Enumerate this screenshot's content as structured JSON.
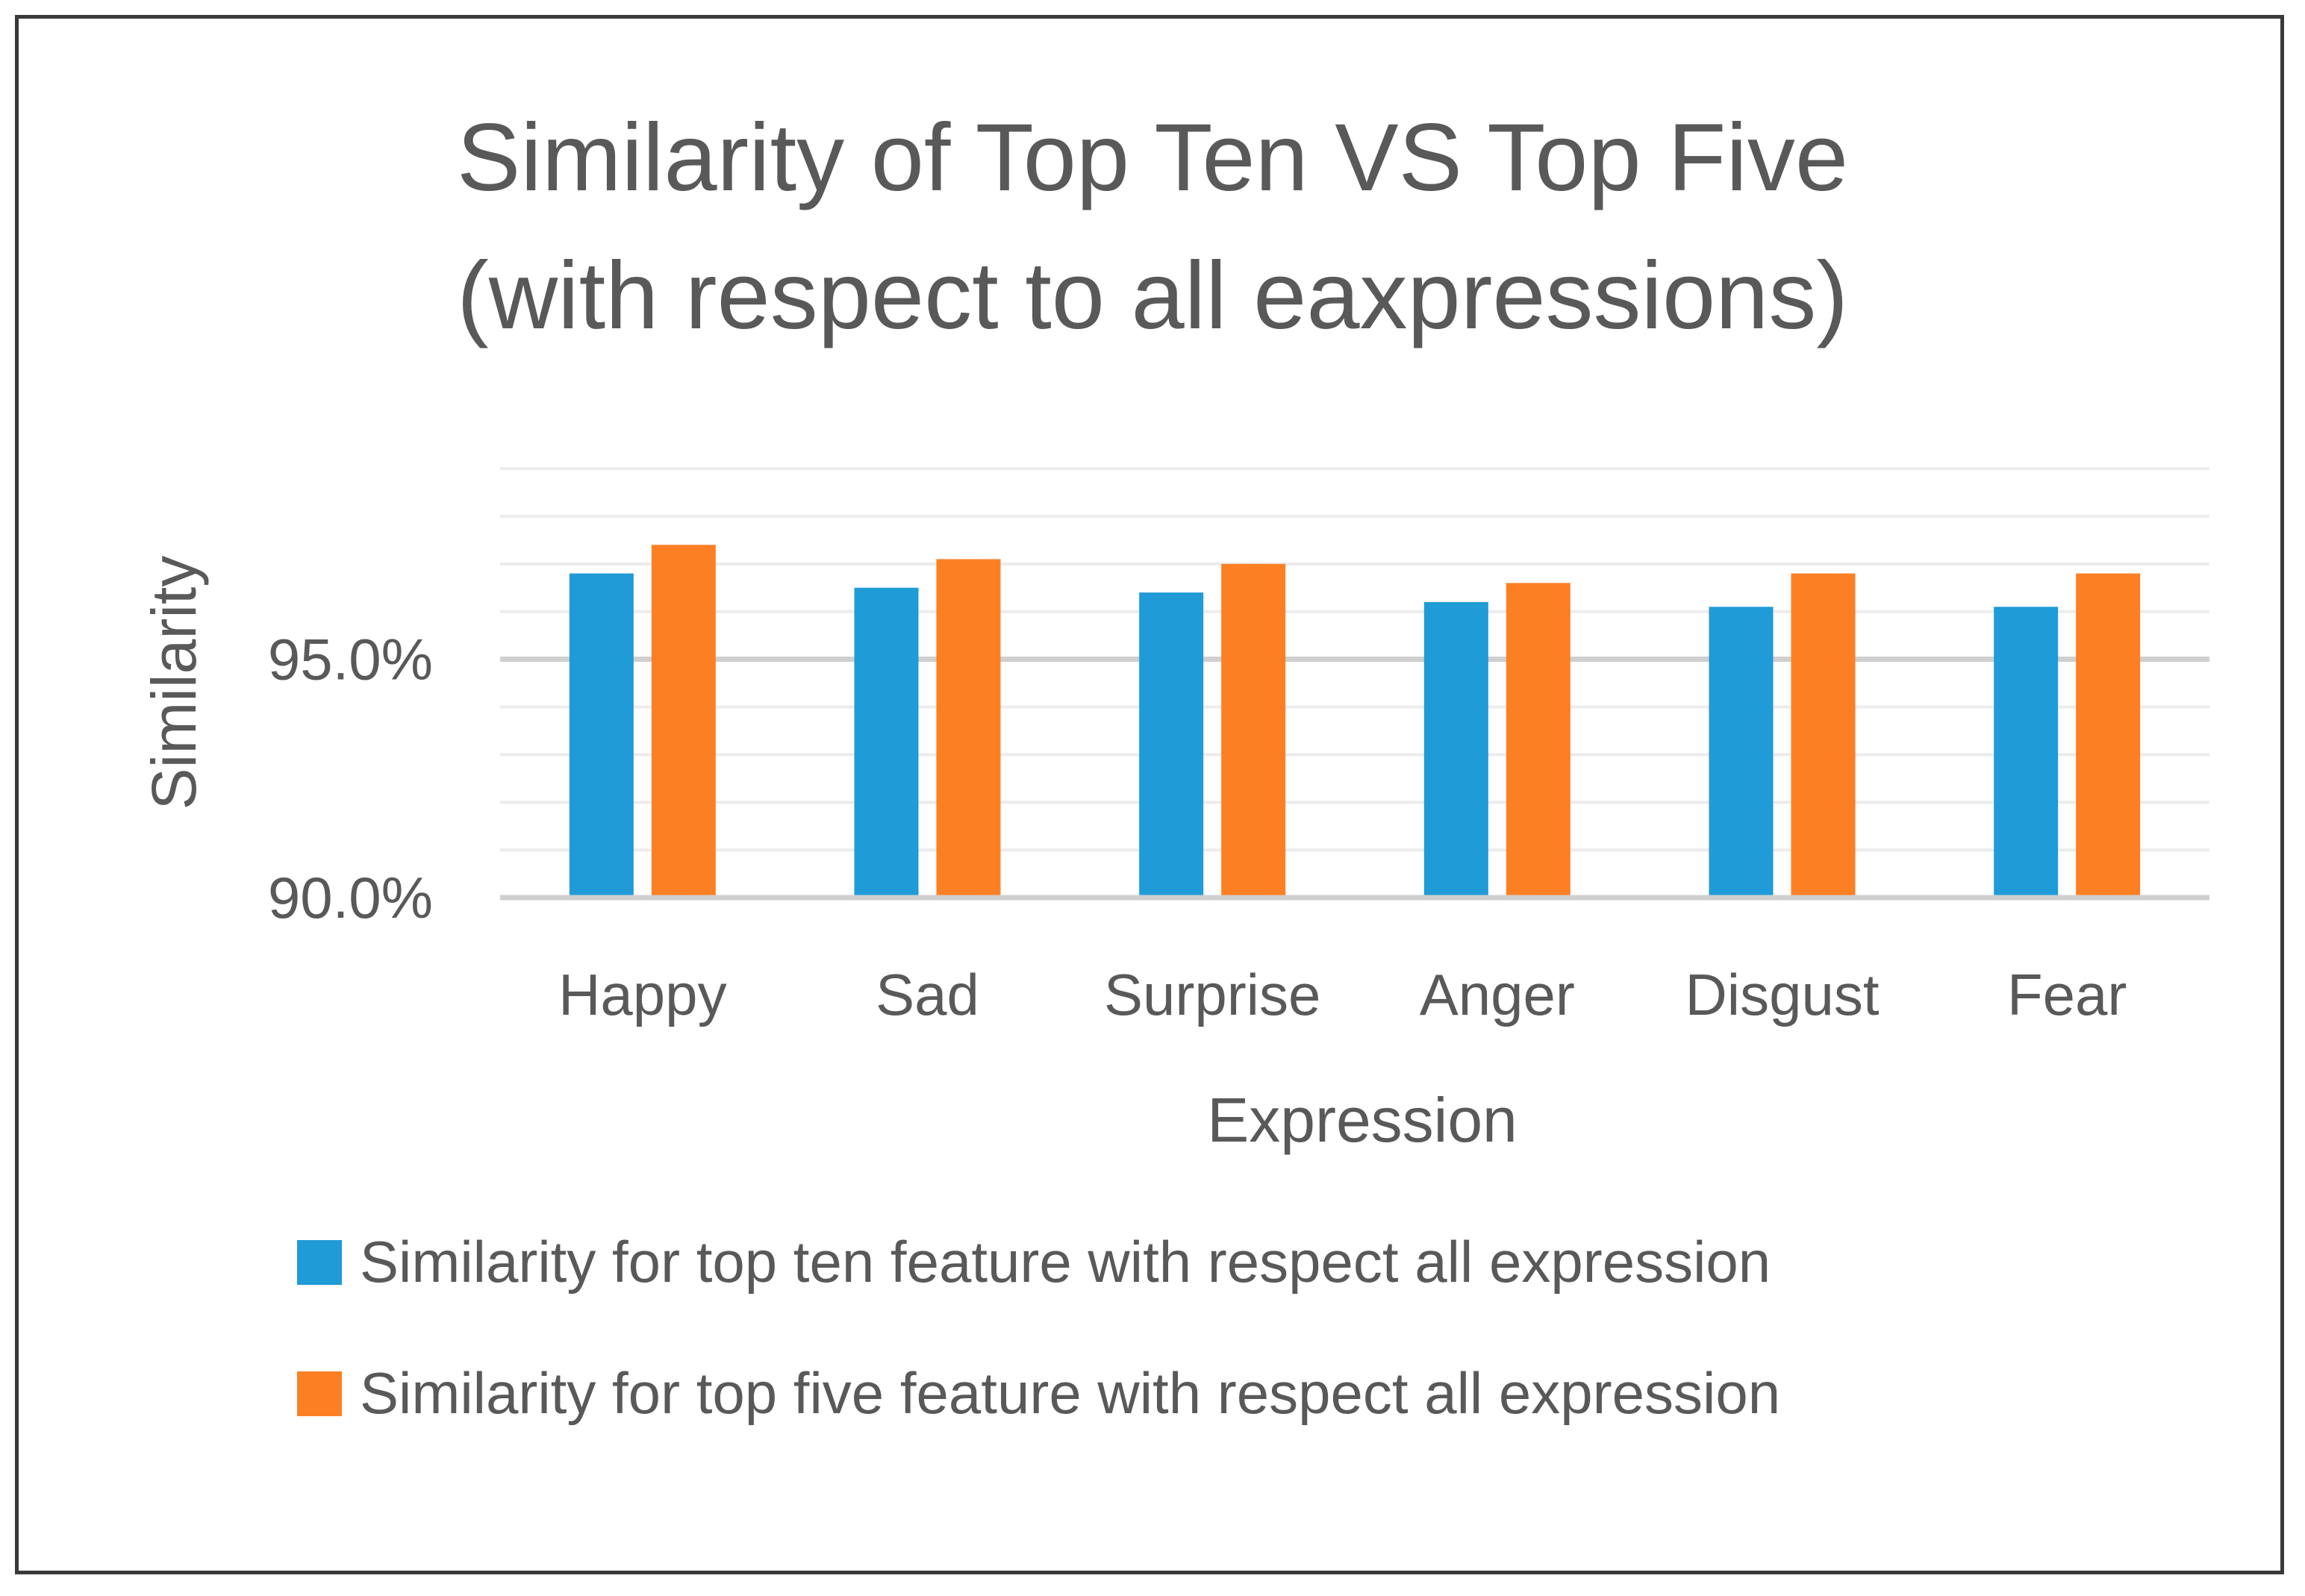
{
  "chart_data": {
    "type": "bar",
    "title": "Similarity of Top Ten VS Top Five",
    "subtitle": "(with respect to all eaxpressions)",
    "xlabel": "Expression",
    "ylabel": "Similarity",
    "categories": [
      "Happy",
      "Sad",
      "Surprise",
      "Anger",
      "Disgust",
      "Fear"
    ],
    "series": [
      {
        "name": "Similarity for top ten feature with respect all expression",
        "color": "#1f9bd7",
        "values": [
          96.8,
          96.5,
          96.4,
          96.2,
          96.1,
          96.1
        ]
      },
      {
        "name": "Similarity for top five feature with respect all expression",
        "color": "#fd7f23",
        "values": [
          97.4,
          97.1,
          97.0,
          96.6,
          96.8,
          96.8
        ]
      }
    ],
    "ylim": [
      90,
      99
    ],
    "yticks": [
      90.0,
      95.0
    ],
    "ytick_labels": [
      "90.0%",
      "95.0%"
    ],
    "minor_grid_step": 1,
    "grid": true,
    "legend_position": "bottom"
  }
}
